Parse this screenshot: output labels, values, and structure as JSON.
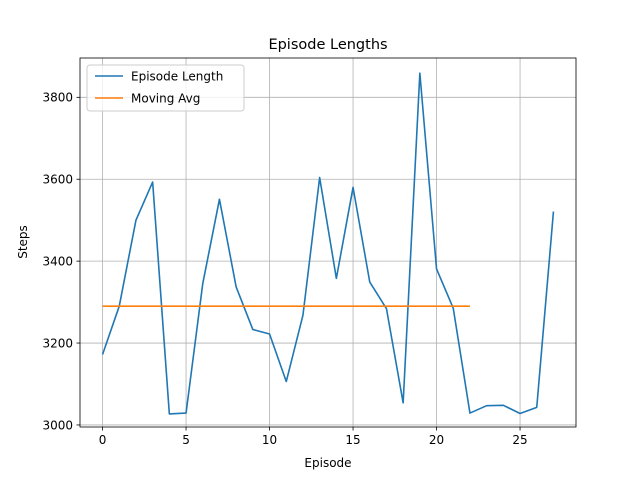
{
  "chart_data": {
    "type": "line",
    "title": "Episode Lengths",
    "xlabel": "Episode",
    "ylabel": "Steps",
    "xlim": [
      -1.35,
      28.35
    ],
    "ylim": [
      2995,
      3896
    ],
    "xticks": [
      0,
      5,
      10,
      15,
      20,
      25
    ],
    "yticks": [
      3000,
      3200,
      3400,
      3600,
      3800
    ],
    "grid": true,
    "legend_position": "upper left",
    "series": [
      {
        "name": "Episode Length",
        "color": "#1f77b4",
        "x": [
          0,
          1,
          2,
          3,
          4,
          5,
          6,
          7,
          8,
          9,
          10,
          11,
          12,
          13,
          14,
          15,
          16,
          17,
          18,
          19,
          20,
          21,
          22,
          23,
          24,
          25,
          26,
          27
        ],
        "y": [
          3172,
          3290,
          3500,
          3593,
          3027,
          3029,
          3345,
          3551,
          3337,
          3233,
          3222,
          3106,
          3268,
          3604,
          3358,
          3580,
          3349,
          3284,
          3054,
          3859,
          3381,
          3285,
          3029,
          3047,
          3048,
          3028,
          3043,
          3521
        ]
      },
      {
        "name": "Moving Avg",
        "color": "#ff7f0e",
        "x": [
          0,
          1,
          2,
          3,
          4,
          5,
          6,
          7,
          8,
          9,
          10,
          11,
          12,
          13,
          14,
          15,
          16,
          17,
          18,
          19,
          20,
          21,
          22
        ],
        "y": [
          3290,
          3290,
          3290,
          3290,
          3290,
          3290,
          3290,
          3290,
          3290,
          3290,
          3290,
          3290,
          3290,
          3290,
          3290,
          3290,
          3290,
          3290,
          3290,
          3290,
          3290,
          3290,
          3290
        ]
      }
    ]
  }
}
